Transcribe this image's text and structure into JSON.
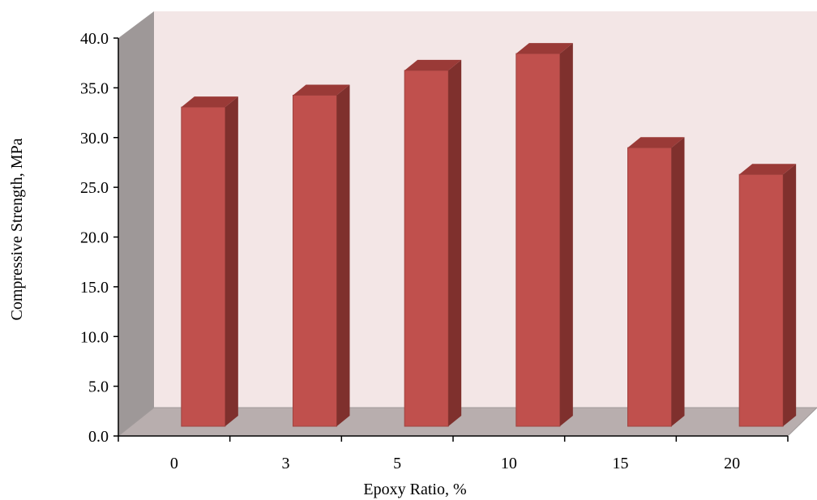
{
  "chart_data": {
    "type": "bar",
    "style": "3d-column",
    "categories": [
      "0",
      "3",
      "5",
      "10",
      "15",
      "20"
    ],
    "values": [
      31.4,
      32.6,
      35.1,
      36.8,
      27.3,
      24.6
    ],
    "yticks": [
      "0.0",
      "5.0",
      "10.0",
      "15.0",
      "20.0",
      "25.0",
      "30.0",
      "35.0",
      "40.0"
    ],
    "xlabel": "Epoxy Ratio, %",
    "ylabel": "Compressive Strength, MPa",
    "ylim": [
      0,
      40
    ],
    "grid": false,
    "legend": "none"
  },
  "colors": {
    "bar_front": "#c0504d",
    "bar_side": "#7f302d",
    "bar_top": "#9a3a37",
    "back_wall": "#f3e6e6",
    "side_wall": "#9e9898",
    "floor": "#b8aeae"
  }
}
